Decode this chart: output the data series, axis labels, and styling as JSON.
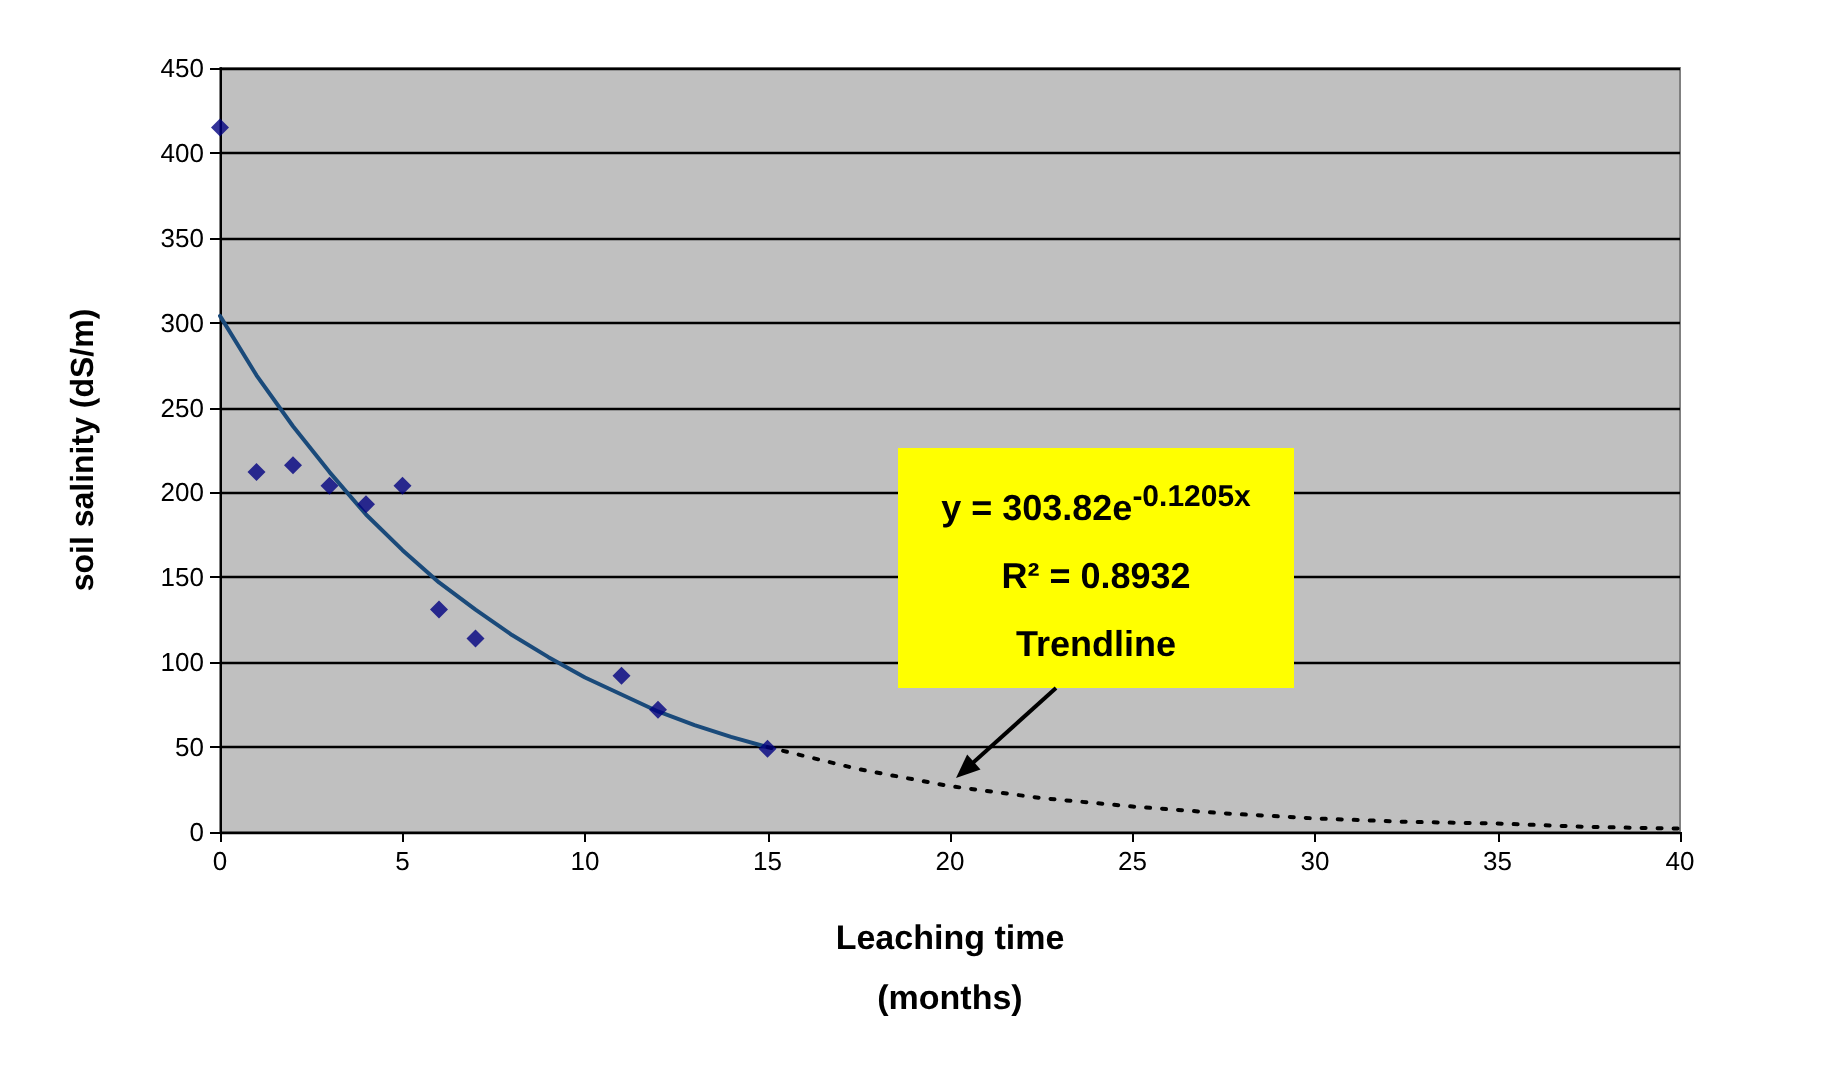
{
  "chart_data": {
    "type": "scatter",
    "xlabel": "Leaching time\n(months)",
    "ylabel": "soil salinity (dS/m)",
    "xlim": [
      0,
      40
    ],
    "xticks": [
      0,
      5,
      10,
      15,
      20,
      25,
      30,
      35,
      40
    ],
    "ylim": [
      0,
      450
    ],
    "yticks": [
      0,
      50,
      100,
      150,
      200,
      250,
      300,
      350,
      400,
      450
    ],
    "grid": "y",
    "series": [
      {
        "marker": "diamond",
        "color": "#000080",
        "x": [
          0,
          1,
          2,
          3,
          4,
          5,
          6,
          7,
          11,
          12,
          15
        ],
        "values": [
          415,
          212,
          216,
          204,
          193,
          204,
          131,
          114,
          92,
          72,
          49
        ]
      },
      {
        "type": "line",
        "marker": "none",
        "line_style": "solid",
        "color": "#1a4a7a",
        "x": [
          0,
          1,
          2,
          3,
          4,
          5,
          6,
          7,
          8,
          9,
          10,
          11,
          12,
          13,
          14,
          15
        ],
        "values": [
          304,
          269,
          239,
          212,
          187,
          166,
          147,
          131,
          116,
          103,
          91,
          81,
          71,
          63,
          56,
          50
        ]
      },
      {
        "type": "line",
        "marker": "none",
        "line_style": "dotted",
        "color": "#000000",
        "x": [
          15,
          17.5,
          20,
          22.5,
          25,
          27.5,
          30,
          32.5,
          35,
          37.5,
          40
        ],
        "values": [
          50,
          37,
          27,
          20,
          15,
          11,
          8,
          6,
          5,
          3,
          2
        ]
      }
    ],
    "annotations": [
      "y = 303.82e$^{-0.1205x}$\nR² = 0.8932\nTrendline"
    ]
  }
}
